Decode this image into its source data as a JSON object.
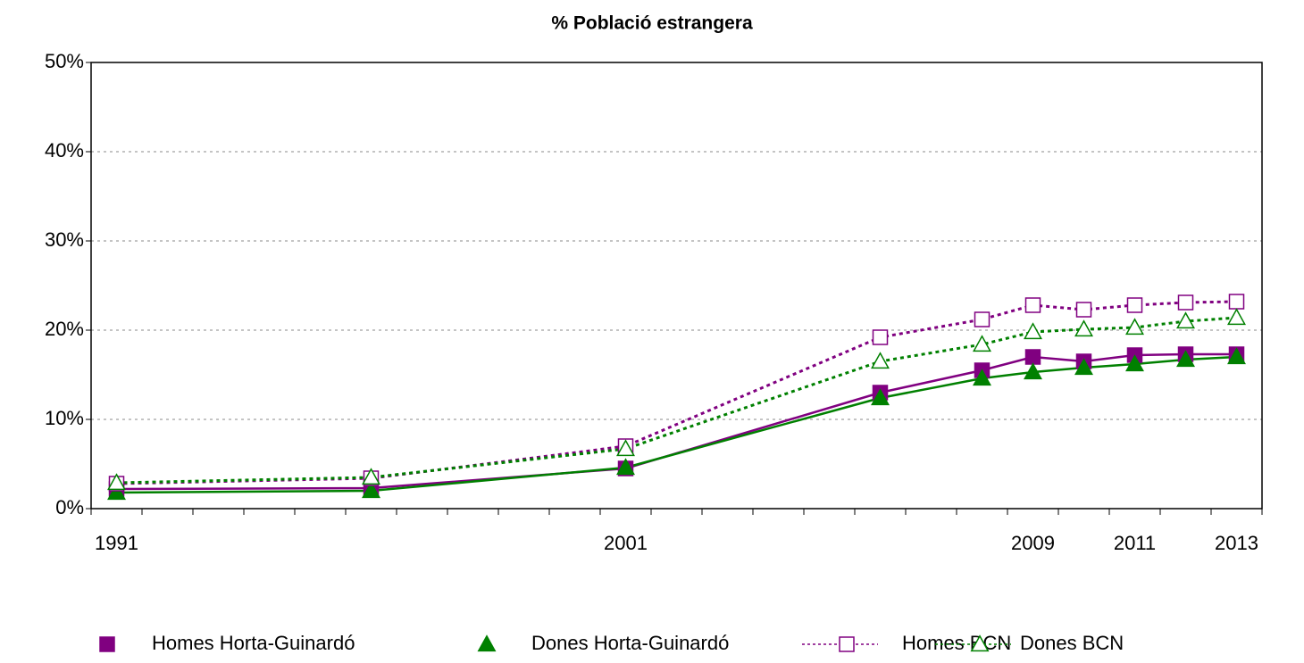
{
  "chart_data": {
    "type": "line",
    "title": "% Població estrangera",
    "x": [
      1991,
      1996,
      2001,
      2006,
      2008,
      2009,
      2010,
      2011,
      2012,
      2013
    ],
    "xlim": [
      1990.5,
      2013.5
    ],
    "xticks": [
      1991,
      2001,
      2009,
      2011,
      2013
    ],
    "ylim": [
      0,
      50
    ],
    "yticks": [
      {
        "value": 0,
        "label": "0%"
      },
      {
        "value": 10,
        "label": "10%"
      },
      {
        "value": 20,
        "label": "20%"
      },
      {
        "value": 30,
        "label": "30%"
      },
      {
        "value": 40,
        "label": "40%"
      },
      {
        "value": 50,
        "label": "50%"
      }
    ],
    "grid": true,
    "legend": "bottom",
    "series": [
      {
        "name": "Homes Horta-Guinardó",
        "color": "#800080",
        "marker": "square",
        "filled": true,
        "dashed": false,
        "values": [
          2.2,
          2.3,
          4.5,
          13.0,
          15.5,
          17.0,
          16.5,
          17.2,
          17.3,
          17.3
        ]
      },
      {
        "name": "Dones Horta-Guinardó",
        "color": "#008000",
        "marker": "triangle",
        "filled": true,
        "dashed": false,
        "values": [
          1.8,
          2.0,
          4.6,
          12.4,
          14.6,
          15.3,
          15.8,
          16.2,
          16.7,
          17.0
        ]
      },
      {
        "name": "Homes BCN",
        "color": "#800080",
        "marker": "square",
        "filled": false,
        "dashed": true,
        "values": [
          2.8,
          3.4,
          7.0,
          19.2,
          21.2,
          22.8,
          22.3,
          22.8,
          23.1,
          23.2
        ]
      },
      {
        "name": "Dones BCN",
        "color": "#008000",
        "marker": "triangle",
        "filled": false,
        "dashed": true,
        "values": [
          2.9,
          3.5,
          6.7,
          16.5,
          18.4,
          19.8,
          20.1,
          20.3,
          21.0,
          21.4
        ]
      }
    ]
  }
}
